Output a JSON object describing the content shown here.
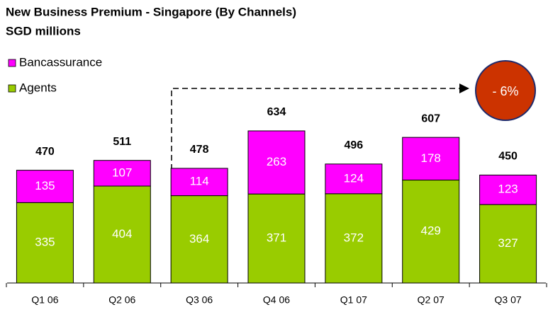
{
  "chart_data": {
    "type": "stacked_bar",
    "title": "New Business Premium - Singapore (By Channels)",
    "subtitle": "SGD millions",
    "categories": [
      "Q1 06",
      "Q2 06",
      "Q3 06",
      "Q4 06",
      "Q1 07",
      "Q2 07",
      "Q3 07"
    ],
    "series": [
      {
        "name": "Bancassurance",
        "color": "#ff00ff",
        "values": [
          135,
          107,
          114,
          263,
          124,
          178,
          123
        ]
      },
      {
        "name": "Agents",
        "color": "#99cc00",
        "values": [
          335,
          404,
          364,
          371,
          372,
          429,
          327
        ]
      }
    ],
    "totals": [
      470,
      511,
      478,
      634,
      496,
      607,
      450
    ],
    "annotation": "- 6%"
  }
}
